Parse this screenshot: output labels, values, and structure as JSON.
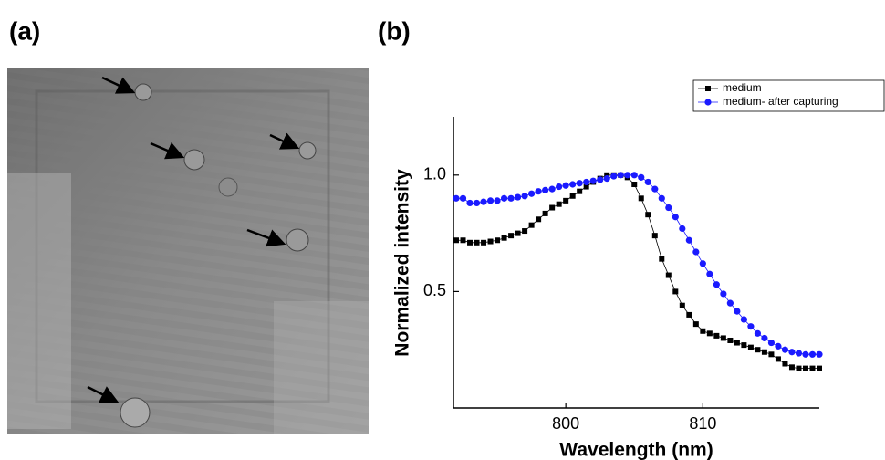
{
  "panels": {
    "a": "(a)",
    "b": "(b)"
  },
  "chart_data": {
    "type": "line",
    "x_label": "Wavelength (nm)",
    "y_label": "Normalized intensity",
    "x": [
      792,
      792.5,
      793,
      793.5,
      794,
      794.5,
      795,
      795.5,
      796,
      796.5,
      797,
      797.5,
      798,
      798.5,
      799,
      799.5,
      800,
      800.5,
      801,
      801.5,
      802,
      802.5,
      803,
      803.5,
      804,
      804.5,
      805,
      805.5,
      806,
      806.5,
      807,
      807.5,
      808,
      808.5,
      809,
      809.5,
      810,
      810.5,
      811,
      811.5,
      812,
      812.5,
      813,
      813.5,
      814,
      814.5,
      815,
      815.5,
      816,
      816.5,
      817,
      817.5,
      818,
      818.5
    ],
    "series": [
      {
        "name": "medium",
        "color": "#000000",
        "marker": "square",
        "values": [
          0.72,
          0.72,
          0.71,
          0.71,
          0.71,
          0.715,
          0.72,
          0.73,
          0.74,
          0.75,
          0.76,
          0.785,
          0.81,
          0.835,
          0.86,
          0.875,
          0.89,
          0.91,
          0.93,
          0.95,
          0.97,
          0.985,
          1.0,
          1.0,
          1.0,
          0.99,
          0.96,
          0.9,
          0.83,
          0.74,
          0.64,
          0.57,
          0.5,
          0.44,
          0.4,
          0.36,
          0.33,
          0.32,
          0.31,
          0.3,
          0.29,
          0.28,
          0.27,
          0.26,
          0.25,
          0.24,
          0.23,
          0.21,
          0.19,
          0.175,
          0.17,
          0.17,
          0.17,
          0.17
        ]
      },
      {
        "name": "medium- after capturing",
        "color": "#1a1aff",
        "marker": "circle",
        "values": [
          0.9,
          0.9,
          0.88,
          0.88,
          0.885,
          0.89,
          0.89,
          0.9,
          0.9,
          0.905,
          0.91,
          0.92,
          0.93,
          0.935,
          0.94,
          0.95,
          0.955,
          0.96,
          0.965,
          0.97,
          0.975,
          0.98,
          0.985,
          0.995,
          1.0,
          1.0,
          1.0,
          0.99,
          0.97,
          0.94,
          0.9,
          0.86,
          0.82,
          0.77,
          0.72,
          0.67,
          0.62,
          0.575,
          0.53,
          0.49,
          0.45,
          0.415,
          0.38,
          0.35,
          0.32,
          0.3,
          0.28,
          0.265,
          0.25,
          0.24,
          0.235,
          0.23,
          0.23,
          0.23
        ]
      }
    ],
    "xlim": [
      791.8,
      818.5
    ],
    "xticks": [
      800,
      810
    ],
    "ylim": [
      0,
      1.25
    ],
    "yticks": [
      0.5,
      {
        "value": 1,
        "label": "1.0"
      }
    ],
    "legend": "upper right"
  }
}
